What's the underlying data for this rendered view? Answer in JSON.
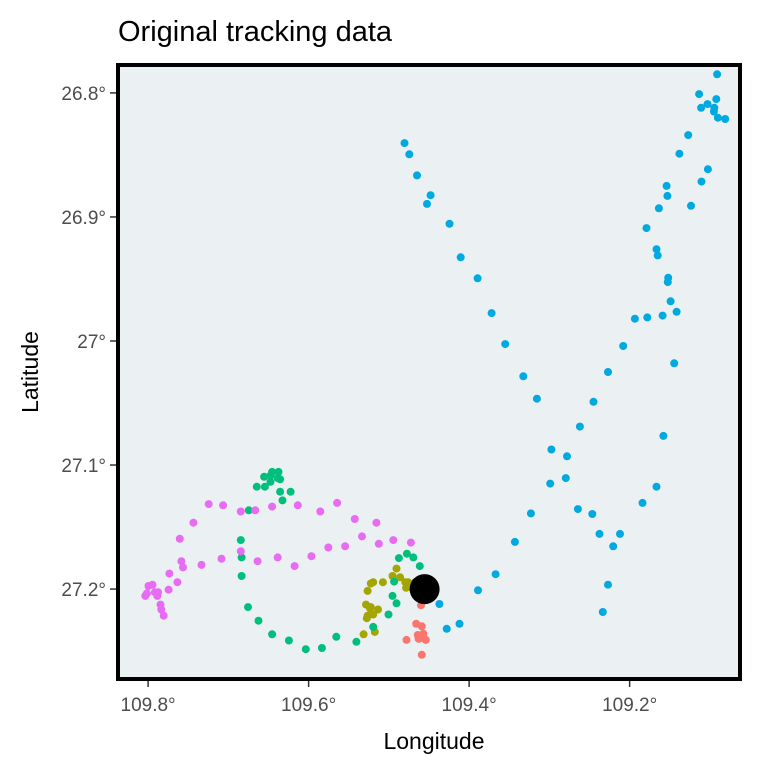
{
  "chart_data": {
    "type": "scatter",
    "title": "Original tracking data",
    "xlabel": "Longitude",
    "ylabel": "Latitude",
    "x_reversed": true,
    "y_reversed": true,
    "xlim": [
      109.8375,
      109.0625
    ],
    "ylim": [
      26.7775,
      27.2725
    ],
    "x_ticks": [
      {
        "value": 109.8,
        "label": "109.8°"
      },
      {
        "value": 109.6,
        "label": "109.6°"
      },
      {
        "value": 109.4,
        "label": "109.4°"
      },
      {
        "value": 109.2,
        "label": "109.2°"
      }
    ],
    "y_ticks": [
      {
        "value": 26.8,
        "label": "26.8°"
      },
      {
        "value": 26.9,
        "label": "26.9°"
      },
      {
        "value": 27.0,
        "label": "27°"
      },
      {
        "value": 27.1,
        "label": "27.1°"
      },
      {
        "value": 27.2,
        "label": "27.2°"
      }
    ],
    "grid": false,
    "legend": "none",
    "colors": {
      "panel_background": "#ebf0f2",
      "panel_border": "#000000",
      "tick_mark": "#333333",
      "center_marker": "#000000"
    },
    "series": [
      {
        "color": "#00a9e0",
        "x": [
          109.461,
          109.458,
          109.437,
          109.428,
          109.412,
          109.389,
          109.367,
          109.343,
          109.323,
          109.299,
          109.278,
          109.262,
          109.245,
          109.227,
          109.208,
          109.178,
          109.1935,
          109.149,
          109.152,
          109.165,
          109.1665,
          109.179,
          109.1635,
          109.153,
          109.154,
          109.138,
          109.127,
          109.111,
          109.1135,
          109.103,
          109.092,
          109.091,
          109.095,
          109.0945,
          109.09,
          109.081,
          109.1025,
          109.1105,
          109.1235,
          109.1525,
          109.1415,
          109.159,
          109.1445,
          109.158,
          109.1665,
          109.184,
          109.212,
          109.2205,
          109.227,
          109.2335,
          109.2375,
          109.2465,
          109.2645,
          109.2795,
          109.2975,
          109.3155,
          109.3325,
          109.355,
          109.372,
          109.3895,
          109.4105,
          109.4245,
          109.448,
          109.465,
          109.4745,
          109.4805,
          109.4525
        ],
        "y": [
          27.2,
          27.21,
          27.212,
          27.232,
          27.228,
          27.201,
          27.188,
          27.162,
          27.139,
          27.115,
          27.093,
          27.069,
          27.049,
          27.025,
          27.004,
          26.981,
          26.982,
          26.968,
          26.949,
          26.931,
          26.926,
          26.909,
          26.893,
          26.883,
          26.875,
          26.849,
          26.834,
          26.812,
          26.801,
          26.809,
          26.805,
          26.785,
          26.815,
          26.812,
          26.82,
          26.821,
          26.8615,
          26.8715,
          26.891,
          26.9525,
          26.9765,
          26.9795,
          27.018,
          27.0765,
          27.1175,
          27.1305,
          27.1555,
          27.1655,
          27.1965,
          27.2185,
          27.1555,
          27.1395,
          27.1355,
          27.1105,
          27.0875,
          27.0465,
          27.0285,
          27.0025,
          26.9775,
          26.9495,
          26.9325,
          26.9055,
          26.8825,
          26.8665,
          26.8495,
          26.8405,
          26.8895
        ]
      },
      {
        "color": "#f8766d",
        "x": [
          109.458,
          109.46,
          109.466,
          109.459,
          109.463,
          109.454,
          109.478,
          109.464,
          109.462,
          109.457,
          109.459
        ],
        "y": [
          27.205,
          27.213,
          27.228,
          27.23,
          27.24,
          27.241,
          27.241,
          27.237,
          27.24,
          27.236,
          27.253
        ]
      },
      {
        "color": "#a3a500",
        "x": [
          109.4905,
          109.486,
          109.476,
          109.4795,
          109.4785,
          109.4725,
          109.4675,
          109.5075,
          109.5195,
          109.5225,
          109.5265,
          109.5285,
          109.5225,
          109.5265,
          109.5135,
          109.5195,
          109.5235,
          109.5275,
          109.5315,
          109.5175,
          109.4955
        ],
        "y": [
          27.1835,
          27.1905,
          27.1945,
          27.1945,
          27.199,
          27.1985,
          27.1945,
          27.1945,
          27.1945,
          27.1955,
          27.2015,
          27.2125,
          27.2145,
          27.2215,
          27.2165,
          27.2205,
          27.2155,
          27.2235,
          27.2365,
          27.2345,
          27.1895
        ]
      },
      {
        "color": "#00bf7d",
        "x": [
          109.4935,
          109.4875,
          109.4775,
          109.4695,
          109.4615,
          109.4955,
          109.4905,
          109.5005,
          109.5195,
          109.5405,
          109.5655,
          109.5835,
          109.6035,
          109.6245,
          109.6455,
          109.6625,
          109.6755,
          109.6835,
          109.6835,
          109.6845,
          109.6745,
          109.6645,
          109.6545,
          109.6475,
          109.6385,
          109.6455,
          109.6475,
          109.6375,
          109.6355,
          109.6355,
          109.6325,
          109.6225,
          109.6555
        ],
        "y": [
          27.194,
          27.175,
          27.1715,
          27.1745,
          27.1815,
          27.2055,
          27.2115,
          27.2205,
          27.2305,
          27.2425,
          27.2385,
          27.2475,
          27.2485,
          27.2415,
          27.2365,
          27.2255,
          27.2145,
          27.1895,
          27.1745,
          27.1605,
          27.1365,
          27.1175,
          27.1175,
          27.1135,
          27.1105,
          27.1055,
          27.1085,
          27.1055,
          27.1115,
          27.1215,
          27.1285,
          27.1215,
          27.1095
        ]
      },
      {
        "color": "#e76bf3",
        "x": [
          109.4725,
          109.4945,
          109.5125,
          109.5335,
          109.5545,
          109.5755,
          109.5965,
          109.6175,
          109.6385,
          109.6635,
          109.6845,
          109.7085,
          109.7335,
          109.7565,
          109.7735,
          109.7915,
          109.8015,
          109.8035,
          109.7945,
          109.7995,
          109.7885,
          109.7875,
          109.7835,
          109.7805,
          109.7845,
          109.7745,
          109.7635,
          109.7585,
          109.7605,
          109.7435,
          109.7245,
          109.7065,
          109.6845,
          109.6665,
          109.6455,
          109.6135,
          109.5855,
          109.5645,
          109.5425,
          109.5155
        ],
        "y": [
          27.1625,
          27.1605,
          27.1635,
          27.1575,
          27.1655,
          27.1665,
          27.1735,
          27.1815,
          27.1745,
          27.1775,
          27.1695,
          27.1755,
          27.1805,
          27.1825,
          27.1875,
          27.2025,
          27.2035,
          27.2055,
          27.1965,
          27.1975,
          27.2055,
          27.2025,
          27.2165,
          27.2215,
          27.2125,
          27.2005,
          27.1945,
          27.1775,
          27.1595,
          27.1465,
          27.1315,
          27.1325,
          27.1375,
          27.1365,
          27.1335,
          27.1325,
          27.1375,
          27.1305,
          27.1435,
          27.1465
        ]
      }
    ],
    "highlight": {
      "x": 109.4555,
      "y": 27.2
    }
  }
}
